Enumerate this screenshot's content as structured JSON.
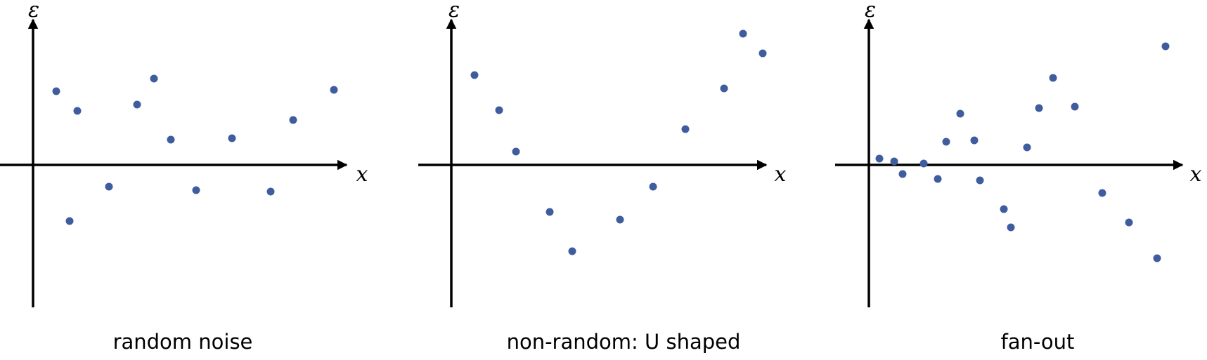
{
  "chart_data": [
    {
      "type": "scatter",
      "title": "random noise",
      "xlabel": "x",
      "ylabel": "ε",
      "point_color": "#3f5d9e",
      "xlim": [
        0,
        450
      ],
      "ylim": [
        -205,
        205
      ],
      "points": [
        {
          "x": 33,
          "y": 105
        },
        {
          "x": 52,
          "y": -80
        },
        {
          "x": 63,
          "y": 77
        },
        {
          "x": 108,
          "y": -31
        },
        {
          "x": 148,
          "y": 86
        },
        {
          "x": 172,
          "y": 123
        },
        {
          "x": 196,
          "y": 36
        },
        {
          "x": 232,
          "y": -36
        },
        {
          "x": 283,
          "y": 38
        },
        {
          "x": 338,
          "y": -38
        },
        {
          "x": 370,
          "y": 64
        },
        {
          "x": 428,
          "y": 107
        }
      ]
    },
    {
      "type": "scatter",
      "title": "non-random: U shaped",
      "xlabel": "x",
      "ylabel": "ε",
      "point_color": "#3f5d9e",
      "xlim": [
        0,
        450
      ],
      "ylim": [
        -205,
        205
      ],
      "points": [
        {
          "x": 33,
          "y": 128
        },
        {
          "x": 68,
          "y": 78
        },
        {
          "x": 92,
          "y": 19
        },
        {
          "x": 140,
          "y": -67
        },
        {
          "x": 172,
          "y": -123
        },
        {
          "x": 240,
          "y": -78
        },
        {
          "x": 287,
          "y": -31
        },
        {
          "x": 333,
          "y": 51
        },
        {
          "x": 388,
          "y": 109
        },
        {
          "x": 415,
          "y": 187
        },
        {
          "x": 443,
          "y": 159
        }
      ]
    },
    {
      "type": "scatter",
      "title": "fan-out",
      "xlabel": "x",
      "ylabel": "ε",
      "point_color": "#3f5d9e",
      "xlim": [
        0,
        450
      ],
      "ylim": [
        -205,
        205
      ],
      "points": [
        {
          "x": 15,
          "y": 9
        },
        {
          "x": 36,
          "y": 5
        },
        {
          "x": 48,
          "y": -13
        },
        {
          "x": 78,
          "y": 2
        },
        {
          "x": 98,
          "y": -20
        },
        {
          "x": 110,
          "y": 33
        },
        {
          "x": 130,
          "y": 73
        },
        {
          "x": 150,
          "y": 35
        },
        {
          "x": 158,
          "y": -22
        },
        {
          "x": 192,
          "y": -63
        },
        {
          "x": 202,
          "y": -89
        },
        {
          "x": 225,
          "y": 25
        },
        {
          "x": 242,
          "y": 81
        },
        {
          "x": 262,
          "y": 124
        },
        {
          "x": 293,
          "y": 83
        },
        {
          "x": 332,
          "y": -40
        },
        {
          "x": 370,
          "y": -82
        },
        {
          "x": 410,
          "y": -133
        },
        {
          "x": 422,
          "y": 169
        }
      ]
    }
  ]
}
